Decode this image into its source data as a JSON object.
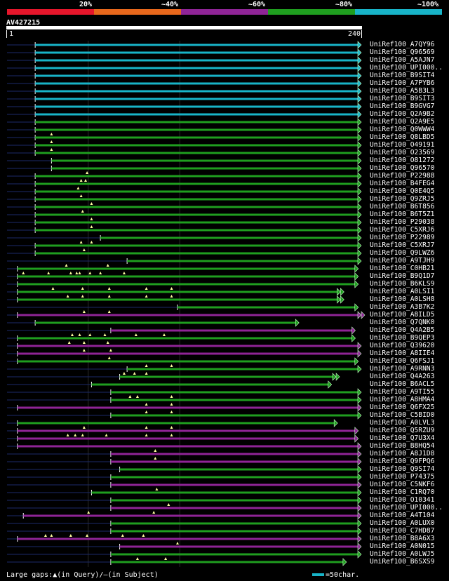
{
  "legend": {
    "labels": [
      "20%",
      "~40%",
      "~60%",
      "~80%",
      "~100%"
    ],
    "colors": [
      "#e6162b",
      "#e8681c",
      "#8f2496",
      "#1f9e1f",
      "#18b4c8"
    ]
  },
  "query": {
    "name": "AV427215",
    "start": "1",
    "end": "240"
  },
  "footer": {
    "left": "Large gaps:▲(in Query)/—(in Subject)",
    "right": "=50char."
  },
  "chart_data": {
    "type": "alignment",
    "title": "AV427215",
    "query_length": 240,
    "identity_bins": [
      "20%",
      "~40%",
      "~60%",
      "~80%",
      "~100%"
    ],
    "hits": [
      {
        "id": "UniRef100_A7QY96",
        "label": "UniRef100_A7QY96",
        "start": 20,
        "end": 240,
        "color": "#18b4c8",
        "dash_from": 1,
        "tris": [],
        "arrow": true
      },
      {
        "id": "UniRef100_Q96569",
        "label": "UniRef100_Q96569",
        "start": 20,
        "end": 240,
        "color": "#18b4c8",
        "dash_from": 1,
        "tris": [],
        "arrow": true
      },
      {
        "id": "UniRef100_A5AJN7",
        "label": "UniRef100_A5AJN7",
        "start": 20,
        "end": 240,
        "color": "#18b4c8",
        "dash_from": 1,
        "tris": [],
        "arrow": true
      },
      {
        "id": "UniRef100_UPI000",
        "label": "UniRef100_UPI000..",
        "start": 20,
        "end": 240,
        "color": "#18b4c8",
        "dash_from": 1,
        "tris": [],
        "arrow": true
      },
      {
        "id": "UniRef100_B9SIT4",
        "label": "UniRef100_B9SIT4",
        "start": 20,
        "end": 240,
        "color": "#18b4c8",
        "dash_from": 1,
        "tris": [],
        "arrow": true
      },
      {
        "id": "UniRef100_A7PYB6",
        "label": "UniRef100_A7PYB6",
        "start": 20,
        "end": 240,
        "color": "#18b4c8",
        "dash_from": 1,
        "tris": [],
        "arrow": true
      },
      {
        "id": "UniRef100_A5B3L3",
        "label": "UniRef100_A5B3L3",
        "start": 20,
        "end": 240,
        "color": "#18b4c8",
        "dash_from": 1,
        "tris": [],
        "arrow": true
      },
      {
        "id": "UniRef100_B9SIT3",
        "label": "UniRef100_B9SIT3",
        "start": 20,
        "end": 240,
        "color": "#18b4c8",
        "dash_from": 1,
        "tris": [],
        "arrow": true
      },
      {
        "id": "UniRef100_B9GVG7",
        "label": "UniRef100_B9GVG7",
        "start": 20,
        "end": 240,
        "color": "#18b4c8",
        "dash_from": 1,
        "tris": [],
        "arrow": true
      },
      {
        "id": "UniRef100_Q2A9B2",
        "label": "UniRef100_Q2A9B2",
        "start": 20,
        "end": 240,
        "color": "#18b4c8",
        "dash_from": 1,
        "tris": [],
        "arrow": true
      },
      {
        "id": "UniRef100_Q2A9E5",
        "label": "UniRef100_Q2A9E5",
        "start": 20,
        "end": 240,
        "color": "#1f9e1f",
        "dash_from": 1,
        "tris": [],
        "arrow": true
      },
      {
        "id": "UniRef100_Q0WWW4",
        "label": "UniRef100_Q0WWW4",
        "start": 20,
        "end": 240,
        "color": "#1f9e1f",
        "dash_from": 1,
        "tris": [],
        "arrow": true
      },
      {
        "id": "UniRef100_Q8LBD5",
        "label": "UniRef100_Q8LBD5",
        "start": 20,
        "end": 240,
        "color": "#1f9e1f",
        "dash_from": 1,
        "tris": [
          31
        ],
        "arrow": true
      },
      {
        "id": "UniRef100_O49191",
        "label": "UniRef100_O49191",
        "start": 20,
        "end": 240,
        "color": "#1f9e1f",
        "dash_from": 1,
        "tris": [
          31
        ],
        "arrow": true
      },
      {
        "id": "UniRef100_O23569",
        "label": "UniRef100_O23569",
        "start": 20,
        "end": 240,
        "color": "#1f9e1f",
        "dash_from": 1,
        "tris": [
          31
        ],
        "arrow": true
      },
      {
        "id": "UniRef100_O81272",
        "label": "UniRef100_O81272",
        "start": 31,
        "end": 240,
        "color": "#1f9e1f",
        "dash_from": 1,
        "tris": [],
        "arrow": true
      },
      {
        "id": "UniRef100_Q96570",
        "label": "UniRef100_Q96570",
        "start": 31,
        "end": 240,
        "color": "#1f9e1f",
        "dash_from": 1,
        "tris": [],
        "arrow": true
      },
      {
        "id": "UniRef100_P22988",
        "label": "UniRef100_P22988",
        "start": 20,
        "end": 240,
        "color": "#1f9e1f",
        "dash_from": 1,
        "tris": [
          55
        ],
        "arrow": true
      },
      {
        "id": "UniRef100_B4FEG4",
        "label": "UniRef100_B4FEG4",
        "start": 20,
        "end": 240,
        "color": "#1f9e1f",
        "dash_from": 1,
        "tris": [
          51,
          54
        ],
        "arrow": true
      },
      {
        "id": "UniRef100_Q0E4Q5",
        "label": "UniRef100_Q0E4Q5",
        "start": 20,
        "end": 240,
        "color": "#1f9e1f",
        "dash_from": 1,
        "tris": [
          49
        ],
        "arrow": true
      },
      {
        "id": "UniRef100_Q9ZRJ5",
        "label": "UniRef100_Q9ZRJ5",
        "start": 20,
        "end": 240,
        "color": "#1f9e1f",
        "dash_from": 1,
        "tris": [
          51
        ],
        "arrow": true
      },
      {
        "id": "UniRef100_B6T856",
        "label": "UniRef100_B6T856",
        "start": 20,
        "end": 240,
        "color": "#1f9e1f",
        "dash_from": 1,
        "tris": [
          58
        ],
        "arrow": true
      },
      {
        "id": "UniRef100_B6T5Z1",
        "label": "UniRef100_B6T5Z1",
        "start": 20,
        "end": 240,
        "color": "#1f9e1f",
        "dash_from": 1,
        "tris": [
          52
        ],
        "arrow": true
      },
      {
        "id": "UniRef100_P29038",
        "label": "UniRef100_P29038",
        "start": 20,
        "end": 240,
        "color": "#1f9e1f",
        "dash_from": 1,
        "tris": [
          58
        ],
        "arrow": true
      },
      {
        "id": "UniRef100_C5XRJ6",
        "label": "UniRef100_C5XRJ6",
        "start": 20,
        "end": 240,
        "color": "#1f9e1f",
        "dash_from": 1,
        "tris": [
          58
        ],
        "arrow": true
      },
      {
        "id": "UniRef100_P22989",
        "label": "UniRef100_P22989",
        "start": 64,
        "end": 240,
        "color": "#1f9e1f",
        "dash_from": 1,
        "tris": [],
        "arrow": true
      },
      {
        "id": "UniRef100_C5XRJ7",
        "label": "UniRef100_C5XRJ7",
        "start": 20,
        "end": 240,
        "color": "#1f9e1f",
        "dash_from": 1,
        "tris": [
          51,
          58
        ],
        "arrow": true
      },
      {
        "id": "UniRef100_Q9LWZ6",
        "label": "UniRef100_Q9LWZ6",
        "start": 20,
        "end": 240,
        "color": "#1f9e1f",
        "dash_from": 1,
        "tris": [
          53
        ],
        "arrow": true
      },
      {
        "id": "UniRef100_A9TJH9",
        "label": "UniRef100_A9TJH9",
        "start": 82,
        "end": 240,
        "color": "#1f9e1f",
        "dash_from": 1,
        "tris": [],
        "arrow": true
      },
      {
        "id": "UniRef100_C0HB21",
        "label": "UniRef100_C0HB21",
        "start": 8,
        "end": 238,
        "color": "#1f9e1f",
        "dash_from": 1,
        "tris": [
          41,
          69
        ],
        "arrow": true
      },
      {
        "id": "UniRef100_B9Q1D7",
        "label": "UniRef100_B9Q1D7",
        "start": 8,
        "end": 238,
        "color": "#1f9e1f",
        "dash_from": 1,
        "tris": [
          12,
          29,
          44,
          48,
          50,
          57,
          64,
          80
        ],
        "arrow": true
      },
      {
        "id": "UniRef100_B6KLS9",
        "label": "UniRef100_B6KLS9",
        "start": 8,
        "end": 238,
        "color": "#1f9e1f",
        "dash_from": 1,
        "tris": [],
        "arrow": true
      },
      {
        "id": "UniRef100_A0LSI1",
        "label": "UniRef100_A0LSI1",
        "start": 8,
        "end": 226,
        "color": "#1f9e1f",
        "dash_from": 1,
        "tris": [
          32,
          52,
          70,
          95,
          112
        ],
        "arrow": true,
        "double": true
      },
      {
        "id": "UniRef100_A0LSH8",
        "label": "UniRef100_A0LSH8",
        "start": 8,
        "end": 226,
        "color": "#1f9e1f",
        "dash_from": 1,
        "tris": [
          42,
          52,
          70,
          95,
          112
        ],
        "arrow": true,
        "double": true
      },
      {
        "id": "UniRef100_A3B7K2",
        "label": "UniRef100_A3B7K2",
        "start": 116,
        "end": 238,
        "color": "#1f9e1f",
        "dash_from": 1,
        "tris": [],
        "arrow": true
      },
      {
        "id": "UniRef100_A8ILD5",
        "label": "UniRef100_A8ILD5",
        "start": 8,
        "end": 240,
        "color": "#8f2496",
        "dash_from": 1,
        "tris": [
          53,
          70
        ],
        "arrow": true,
        "double": true
      },
      {
        "id": "UniRef100_Q7QNK0",
        "label": "UniRef100_Q7QNK0",
        "start": 20,
        "end": 198,
        "color": "#1f9e1f",
        "dash_from": 1,
        "tris": [],
        "arrow": true
      },
      {
        "id": "UniRef100_Q4A2B5",
        "label": "UniRef100_Q4A2B5",
        "start": 71,
        "end": 236,
        "color": "#8f2496",
        "dash_from": 1,
        "tris": [],
        "arrow": true
      },
      {
        "id": "UniRef100_B9QEP3",
        "label": "UniRef100_B9QEP3",
        "start": 8,
        "end": 236,
        "color": "#1f9e1f",
        "dash_from": 1,
        "tris": [
          45,
          50,
          57,
          67,
          88,
          107
        ],
        "arrow": true
      },
      {
        "id": "UniRef100_Q39620",
        "label": "UniRef100_Q39620",
        "start": 8,
        "end": 240,
        "color": "#8f2496",
        "dash_from": 1,
        "tris": [
          43,
          53,
          69
        ],
        "arrow": true
      },
      {
        "id": "UniRef100_A8IIE4",
        "label": "UniRef100_A8IIE4",
        "start": 8,
        "end": 240,
        "color": "#8f2496",
        "dash_from": 1,
        "tris": [
          53,
          71
        ],
        "arrow": true
      },
      {
        "id": "UniRef100_Q6FSJ1",
        "label": "UniRef100_Q6FSJ1",
        "start": 8,
        "end": 238,
        "color": "#1f9e1f",
        "dash_from": 1,
        "tris": [
          70
        ],
        "arrow": true
      },
      {
        "id": "UniRef100_A9RNN3",
        "label": "UniRef100_A9RNN3",
        "start": 82,
        "end": 240,
        "color": "#1f9e1f",
        "dash_from": 1,
        "tris": [
          95,
          112
        ],
        "arrow": true
      },
      {
        "id": "UniRef100_Q4A263",
        "label": "UniRef100_Q4A263",
        "start": 77,
        "end": 223,
        "color": "#1f9e1f",
        "dash_from": 1,
        "tris": [
          80,
          87,
          95
        ],
        "arrow": true,
        "double": true
      },
      {
        "id": "UniRef100_B6ACL5",
        "label": "UniRef100_B6ACL5",
        "start": 58,
        "end": 220,
        "color": "#1f9e1f",
        "dash_from": 1,
        "tris": [],
        "arrow": true
      },
      {
        "id": "UniRef100_A9TI55",
        "label": "UniRef100_A9TI55",
        "start": 71,
        "end": 240,
        "color": "#1f9e1f",
        "dash_from": 1,
        "tris": [],
        "arrow": true
      },
      {
        "id": "UniRef100_A8HMA4",
        "label": "UniRef100_A8HMA4",
        "start": 71,
        "end": 240,
        "color": "#1f9e1f",
        "dash_from": 1,
        "tris": [
          84,
          89,
          112
        ],
        "arrow": true
      },
      {
        "id": "UniRef100_Q6FX25",
        "label": "UniRef100_Q6FX25",
        "start": 8,
        "end": 240,
        "color": "#8f2496",
        "dash_from": 1,
        "tris": [
          95,
          112
        ],
        "arrow": true
      },
      {
        "id": "UniRef100_C5BID0",
        "label": "UniRef100_C5BID0",
        "start": 71,
        "end": 240,
        "color": "#1f9e1f",
        "dash_from": 1,
        "tris": [
          95,
          112
        ],
        "arrow": true
      },
      {
        "id": "UniRef100_A0LVL3",
        "label": "UniRef100_A0LVL3",
        "start": 8,
        "end": 224,
        "color": "#1f9e1f",
        "dash_from": 1,
        "tris": [],
        "arrow": true
      },
      {
        "id": "UniRef100_Q5RZU9",
        "label": "UniRef100_Q5RZU9",
        "start": 8,
        "end": 238,
        "color": "#8f2496",
        "dash_from": 1,
        "tris": [
          53,
          95,
          112
        ],
        "arrow": true
      },
      {
        "id": "UniRef100_Q7U3X4",
        "label": "UniRef100_Q7U3X4",
        "start": 8,
        "end": 238,
        "color": "#8f2496",
        "dash_from": 1,
        "tris": [
          42,
          47,
          52,
          68,
          95,
          112
        ],
        "arrow": true
      },
      {
        "id": "UniRef100_B8HQ54",
        "label": "UniRef100_B8HQ54",
        "start": 8,
        "end": 240,
        "color": "#8f2496",
        "dash_from": 1,
        "tris": [],
        "arrow": true
      },
      {
        "id": "UniRef100_A8J1D8",
        "label": "UniRef100_A8J1D8",
        "start": 71,
        "end": 240,
        "color": "#8f2496",
        "dash_from": 1,
        "tris": [
          101
        ],
        "arrow": true
      },
      {
        "id": "UniRef100_Q9FPQ6",
        "label": "UniRef100_Q9FPQ6",
        "start": 71,
        "end": 240,
        "color": "#8f2496",
        "dash_from": 1,
        "tris": [
          101
        ],
        "arrow": true
      },
      {
        "id": "UniRef100_Q9SI74",
        "label": "UniRef100_Q9SI74",
        "start": 77,
        "end": 240,
        "color": "#1f9e1f",
        "dash_from": 1,
        "tris": [],
        "arrow": true
      },
      {
        "id": "UniRef100_P74375",
        "label": "UniRef100_P74375",
        "start": 71,
        "end": 240,
        "color": "#1f9e1f",
        "dash_from": 1,
        "tris": [],
        "arrow": true
      },
      {
        "id": "UniRef100_C5NKF6",
        "label": "UniRef100_C5NKF6",
        "start": 71,
        "end": 240,
        "color": "#8f2496",
        "dash_from": 1,
        "tris": [],
        "arrow": true
      },
      {
        "id": "UniRef100_C1RQ70",
        "label": "UniRef100_C1RQ70",
        "start": 58,
        "end": 240,
        "color": "#1f9e1f",
        "dash_from": 1,
        "tris": [
          102
        ],
        "arrow": true
      },
      {
        "id": "UniRef100_O10341",
        "label": "UniRef100_O10341",
        "start": 71,
        "end": 240,
        "color": "#1f9e1f",
        "dash_from": 1,
        "tris": [],
        "arrow": true
      },
      {
        "id": "UniRef100_UPI000b",
        "label": "UniRef100_UPI000..",
        "start": 71,
        "end": 240,
        "color": "#8f2496",
        "dash_from": 1,
        "tris": [
          110
        ],
        "arrow": true
      },
      {
        "id": "UniRef100_A4T104",
        "label": "UniRef100_A4T104",
        "start": 12,
        "end": 240,
        "color": "#8f2496",
        "dash_from": 1,
        "tris": [
          56,
          100
        ],
        "arrow": true
      },
      {
        "id": "UniRef100_A0LUX0",
        "label": "UniRef100_A0LUX0",
        "start": 71,
        "end": 240,
        "color": "#1f9e1f",
        "dash_from": 1,
        "tris": [],
        "arrow": true
      },
      {
        "id": "UniRef100_C7HD87",
        "label": "UniRef100_C7HD87",
        "start": 71,
        "end": 240,
        "color": "#1f9e1f",
        "dash_from": 1,
        "tris": [],
        "arrow": true
      },
      {
        "id": "UniRef100_B8A6X3",
        "label": "UniRef100_B8A6X3",
        "start": 8,
        "end": 240,
        "color": "#8f2496",
        "dash_from": 1,
        "tris": [
          27,
          31,
          44,
          55,
          79,
          93
        ],
        "arrow": true
      },
      {
        "id": "UniRef100_A0N015",
        "label": "UniRef100_A0N015",
        "start": 77,
        "end": 240,
        "color": "#8f2496",
        "dash_from": 1,
        "tris": [
          116
        ],
        "arrow": true
      },
      {
        "id": "UniRef100_A0LWJ5",
        "label": "UniRef100_A0LWJ5",
        "start": 71,
        "end": 240,
        "color": "#1f9e1f",
        "dash_from": 1,
        "tris": [],
        "arrow": true
      },
      {
        "id": "UniRef100_B6SXS9",
        "label": "UniRef100_B6SXS9",
        "start": 71,
        "end": 230,
        "color": "#1f9e1f",
        "dash_from": 1,
        "tris": [
          89,
          108
        ],
        "arrow": true
      }
    ]
  }
}
